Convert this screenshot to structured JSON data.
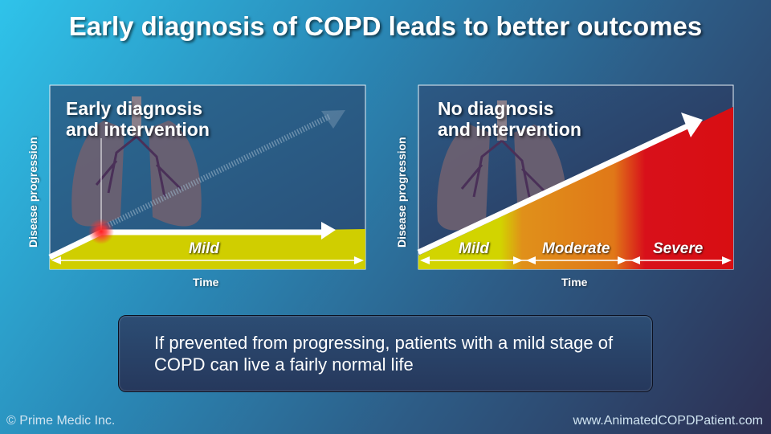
{
  "title": "Early diagnosis of COPD leads to better outcomes",
  "left_panel": {
    "title_line1": "Early diagnosis",
    "title_line2": "and intervention",
    "y_axis": "Disease progression",
    "x_axis": "Time",
    "stage": "Mild"
  },
  "right_panel": {
    "title_line1": "No diagnosis",
    "title_line2": "and intervention",
    "y_axis": "Disease progression",
    "x_axis": "Time",
    "stages": [
      "Mild",
      "Moderate",
      "Severe"
    ]
  },
  "caption": "If prevented from progressing, patients with a mild stage of COPD can live a fairly normal life",
  "footer": {
    "copyright": "© Prime Medic Inc.",
    "website": "www.AnimatedCOPDPatient.com"
  },
  "colors": {
    "mild": "#d2d000",
    "moderate": "#e08a18",
    "severe": "#d80e12"
  }
}
